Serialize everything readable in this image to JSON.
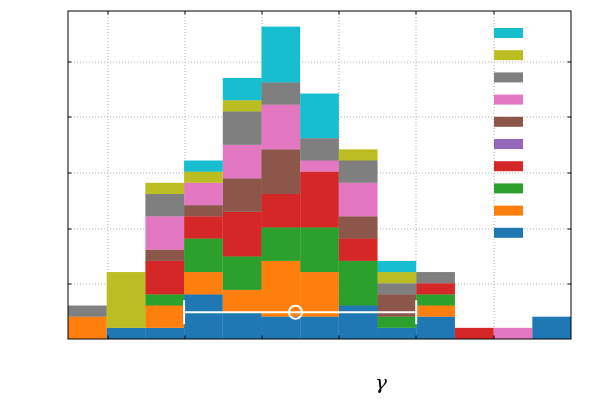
{
  "chart_data": {
    "type": "bar",
    "stacked": true,
    "xlabel": "γ",
    "ylabel": "",
    "title": "",
    "bins": 13,
    "ylim": [
      0,
      14.7
    ],
    "grid": true,
    "legend_position": "top-right",
    "series": [
      {
        "color": "#1f77b4",
        "values": [
          0,
          0.5,
          0.5,
          2.0,
          1.2,
          1.0,
          1.0,
          1.5,
          0.5,
          1.0,
          0,
          0,
          1.0
        ]
      },
      {
        "color": "#ff7f0e",
        "values": [
          1.0,
          0,
          1.0,
          1.0,
          1.0,
          2.5,
          2.0,
          0,
          0,
          0.5,
          0,
          0,
          0
        ]
      },
      {
        "color": "#2ca02c",
        "values": [
          0,
          0,
          0.5,
          1.5,
          1.5,
          1.5,
          2.0,
          2.0,
          0.5,
          0.5,
          0,
          0,
          0
        ]
      },
      {
        "color": "#d62728",
        "values": [
          0,
          0,
          1.5,
          1.0,
          2.0,
          1.5,
          2.5,
          1.0,
          0,
          0.5,
          0.5,
          0,
          0
        ]
      },
      {
        "color": "#9467bd",
        "values": [
          0,
          0,
          0,
          0,
          0,
          0,
          0,
          0,
          0,
          0,
          0,
          0,
          0
        ]
      },
      {
        "color": "#8c564b",
        "values": [
          0,
          0,
          0.5,
          0.5,
          1.5,
          2.0,
          0,
          1.0,
          1.0,
          0,
          0,
          0,
          0
        ]
      },
      {
        "color": "#e377c2",
        "values": [
          0,
          0,
          1.5,
          1.0,
          1.5,
          2.0,
          0.5,
          1.5,
          0,
          0,
          0,
          0.5,
          0
        ]
      },
      {
        "color": "#7f7f7f",
        "values": [
          0.5,
          0,
          1.0,
          0,
          1.5,
          1.0,
          1.0,
          1.0,
          0.5,
          0.5,
          0,
          0,
          0
        ]
      },
      {
        "color": "#bcbd22",
        "values": [
          0,
          2.5,
          0.5,
          0.5,
          0.5,
          0,
          0,
          0.5,
          0.5,
          0,
          0,
          0,
          0
        ]
      },
      {
        "color": "#17becf",
        "values": [
          0,
          0,
          0,
          0.5,
          1.0,
          2.5,
          2.0,
          0,
          0.5,
          0,
          0,
          0,
          0
        ]
      }
    ],
    "error_bar": {
      "center_bin": 6,
      "low_bin": 3,
      "high_bin": 9,
      "value": 1.2
    }
  }
}
